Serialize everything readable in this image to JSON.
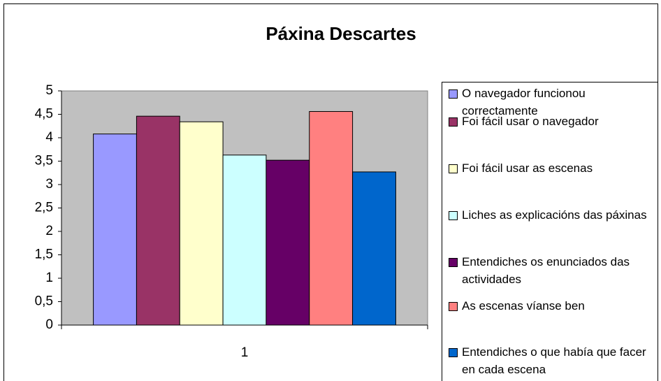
{
  "chart_data": {
    "type": "bar",
    "title": "Páxina Descartes",
    "categories": [
      "1"
    ],
    "series": [
      {
        "name": "O navegador funcionou correctamente",
        "color": "#9999ff",
        "values": [
          4.08
        ]
      },
      {
        "name": "Foi fácil usar o navegador",
        "color": "#993366",
        "values": [
          4.46
        ]
      },
      {
        "name": "Foi fácil usar as escenas",
        "color": "#ffffcc",
        "values": [
          4.34
        ]
      },
      {
        "name": "Liches as explicacións das páxinas",
        "color": "#ccffff",
        "values": [
          3.63
        ]
      },
      {
        "name": "Entendiches os enunciados das actividades",
        "color": "#660066",
        "values": [
          3.52
        ]
      },
      {
        "name": "As escenas víanse ben",
        "color": "#ff8080",
        "values": [
          4.56
        ]
      },
      {
        "name": "Entendiches o que había que facer en cada escena",
        "color": "#0066cc",
        "values": [
          3.27
        ]
      }
    ],
    "ylim": [
      0,
      5
    ],
    "yticks": [
      0,
      {
        "value": 0.5,
        "label": "0,5"
      },
      1,
      {
        "value": 1.5,
        "label": "1,5"
      },
      2,
      {
        "value": 2.5,
        "label": "2,5"
      },
      3,
      {
        "value": 3.5,
        "label": "3,5"
      },
      4,
      {
        "value": 4.5,
        "label": "4,5"
      },
      5
    ],
    "plot_background": "#c0c0c0"
  }
}
